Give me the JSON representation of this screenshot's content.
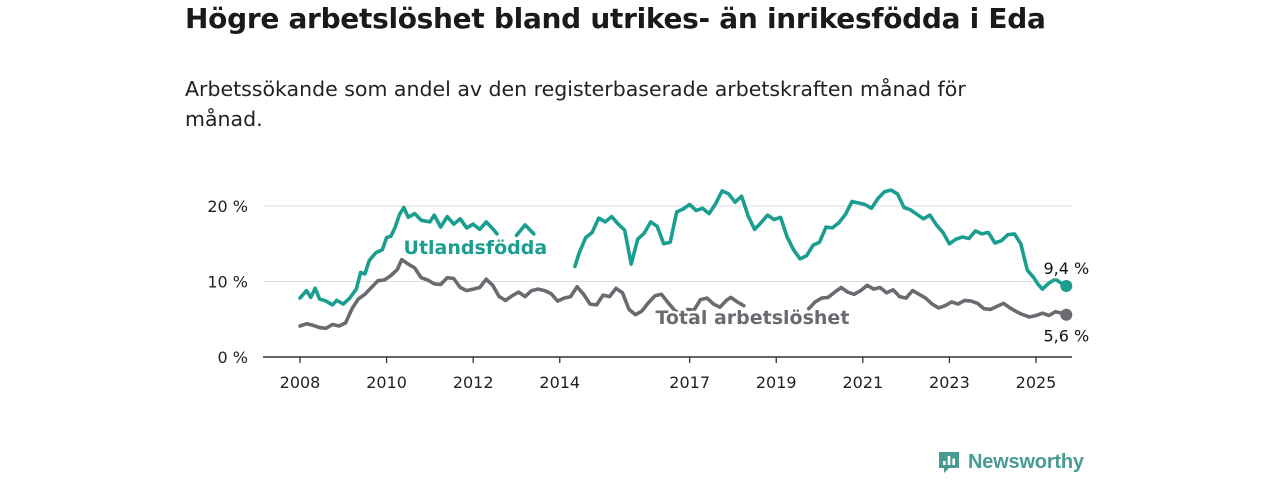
{
  "title": "Högre arbetslöshet bland utrikes- än inrikesfödda i Eda",
  "subtitle": "Arbetssökande som andel av den registerbaserade arbetskraften månad för månad.",
  "brand": {
    "name": "Newsworthy",
    "color": "#4a9a94"
  },
  "chart_data": {
    "type": "line",
    "ylim": [
      0,
      20
    ],
    "y_ticks": [
      0,
      10,
      20
    ],
    "y_tick_labels": [
      "0 %",
      "10 %",
      "20 %"
    ],
    "x_ticks": [
      2008,
      2010,
      2012,
      2014,
      2017,
      2019,
      2021,
      2023,
      2025
    ],
    "x_range": [
      2008.0,
      2025.3
    ],
    "grid": true,
    "series": [
      {
        "name": "Utlandsfödda",
        "color": "#1a9e8f",
        "end_label": "9,4 %",
        "points": [
          [
            2008.0,
            7.8
          ],
          [
            2008.15,
            8.8
          ],
          [
            2008.25,
            7.9
          ],
          [
            2008.35,
            9.1
          ],
          [
            2008.45,
            7.7
          ],
          [
            2008.6,
            7.4
          ],
          [
            2008.75,
            6.9
          ],
          [
            2008.85,
            7.5
          ],
          [
            2009.0,
            7.0
          ],
          [
            2009.15,
            7.8
          ],
          [
            2009.3,
            9.0
          ],
          [
            2009.4,
            11.2
          ],
          [
            2009.5,
            11.0
          ],
          [
            2009.6,
            12.8
          ],
          [
            2009.75,
            13.8
          ],
          [
            2009.9,
            14.2
          ],
          [
            2010.0,
            15.8
          ],
          [
            2010.1,
            16.0
          ],
          [
            2010.2,
            17.2
          ],
          [
            2010.3,
            18.9
          ],
          [
            2010.4,
            19.8
          ],
          [
            2010.5,
            18.5
          ],
          [
            2010.65,
            19.0
          ],
          [
            2010.8,
            18.1
          ],
          [
            2011.0,
            17.9
          ],
          [
            2011.1,
            18.8
          ],
          [
            2011.25,
            17.2
          ],
          [
            2011.4,
            18.6
          ],
          [
            2011.55,
            17.6
          ],
          [
            2011.7,
            18.3
          ],
          [
            2011.85,
            17.1
          ],
          [
            2012.0,
            17.6
          ],
          [
            2012.15,
            16.9
          ],
          [
            2012.3,
            17.9
          ],
          [
            2012.45,
            17.0
          ],
          [
            2012.55,
            16.3
          ],
          null,
          [
            2013.0,
            16.1
          ],
          [
            2013.2,
            17.5
          ],
          [
            2013.4,
            16.3
          ],
          null,
          [
            2014.35,
            12.0
          ],
          [
            2014.45,
            13.8
          ],
          [
            2014.6,
            15.8
          ],
          [
            2014.75,
            16.5
          ],
          [
            2014.9,
            18.4
          ],
          [
            2015.05,
            17.9
          ],
          [
            2015.2,
            18.6
          ],
          [
            2015.35,
            17.6
          ],
          [
            2015.5,
            16.8
          ],
          [
            2015.65,
            12.3
          ],
          [
            2015.8,
            15.6
          ],
          [
            2015.95,
            16.4
          ],
          [
            2016.1,
            17.9
          ],
          [
            2016.25,
            17.3
          ],
          [
            2016.4,
            15.0
          ],
          [
            2016.55,
            15.2
          ],
          [
            2016.7,
            19.2
          ],
          [
            2016.85,
            19.6
          ],
          [
            2017.0,
            20.2
          ],
          [
            2017.15,
            19.4
          ],
          [
            2017.3,
            19.7
          ],
          [
            2017.45,
            19.0
          ],
          [
            2017.6,
            20.3
          ],
          [
            2017.75,
            22.0
          ],
          [
            2017.9,
            21.6
          ],
          [
            2018.05,
            20.5
          ],
          [
            2018.2,
            21.3
          ],
          [
            2018.35,
            18.7
          ],
          [
            2018.5,
            16.9
          ],
          [
            2018.65,
            17.8
          ],
          [
            2018.8,
            18.8
          ],
          [
            2018.95,
            18.2
          ],
          [
            2019.1,
            18.5
          ],
          [
            2019.25,
            15.9
          ],
          [
            2019.4,
            14.2
          ],
          [
            2019.55,
            13.0
          ],
          [
            2019.7,
            13.4
          ],
          [
            2019.85,
            14.8
          ],
          [
            2020.0,
            15.2
          ],
          [
            2020.15,
            17.2
          ],
          [
            2020.3,
            17.1
          ],
          [
            2020.45,
            17.8
          ],
          [
            2020.6,
            18.9
          ],
          [
            2020.75,
            20.6
          ],
          [
            2020.9,
            20.4
          ],
          [
            2021.05,
            20.2
          ],
          [
            2021.2,
            19.7
          ],
          [
            2021.35,
            21.0
          ],
          [
            2021.5,
            21.9
          ],
          [
            2021.65,
            22.1
          ],
          [
            2021.8,
            21.6
          ],
          [
            2021.95,
            19.8
          ],
          [
            2022.1,
            19.5
          ],
          [
            2022.25,
            18.9
          ],
          [
            2022.4,
            18.3
          ],
          [
            2022.55,
            18.8
          ],
          [
            2022.7,
            17.5
          ],
          [
            2022.85,
            16.5
          ],
          [
            2023.0,
            15.0
          ],
          [
            2023.15,
            15.6
          ],
          [
            2023.3,
            15.9
          ],
          [
            2023.45,
            15.7
          ],
          [
            2023.6,
            16.7
          ],
          [
            2023.75,
            16.3
          ],
          [
            2023.9,
            16.5
          ],
          [
            2024.05,
            15.1
          ],
          [
            2024.2,
            15.4
          ],
          [
            2024.35,
            16.2
          ],
          [
            2024.5,
            16.3
          ],
          [
            2024.65,
            15.0
          ],
          [
            2024.8,
            11.5
          ],
          [
            2024.95,
            10.5
          ],
          [
            2025.05,
            9.6
          ],
          [
            2025.15,
            9.0
          ],
          [
            2025.3,
            9.8
          ],
          [
            2025.45,
            10.3
          ],
          [
            2025.55,
            9.9
          ],
          [
            2025.7,
            9.4
          ]
        ]
      },
      {
        "name": "Total arbetslöshet",
        "color": "#6b6a70",
        "end_label": "5,6 %",
        "points": [
          [
            2008.0,
            4.1
          ],
          [
            2008.15,
            4.4
          ],
          [
            2008.3,
            4.2
          ],
          [
            2008.45,
            3.9
          ],
          [
            2008.6,
            3.8
          ],
          [
            2008.75,
            4.3
          ],
          [
            2008.9,
            4.1
          ],
          [
            2009.05,
            4.5
          ],
          [
            2009.2,
            6.4
          ],
          [
            2009.35,
            7.7
          ],
          [
            2009.5,
            8.3
          ],
          [
            2009.65,
            9.2
          ],
          [
            2009.8,
            10.1
          ],
          [
            2009.95,
            10.2
          ],
          [
            2010.1,
            10.8
          ],
          [
            2010.25,
            11.6
          ],
          [
            2010.35,
            12.9
          ],
          [
            2010.5,
            12.3
          ],
          [
            2010.65,
            11.8
          ],
          [
            2010.8,
            10.5
          ],
          [
            2010.95,
            10.2
          ],
          [
            2011.1,
            9.7
          ],
          [
            2011.25,
            9.6
          ],
          [
            2011.4,
            10.5
          ],
          [
            2011.55,
            10.4
          ],
          [
            2011.7,
            9.2
          ],
          [
            2011.85,
            8.8
          ],
          [
            2012.0,
            9.0
          ],
          [
            2012.15,
            9.2
          ],
          [
            2012.3,
            10.3
          ],
          [
            2012.45,
            9.5
          ],
          [
            2012.6,
            8.0
          ],
          [
            2012.75,
            7.5
          ],
          [
            2012.9,
            8.1
          ],
          [
            2013.05,
            8.6
          ],
          [
            2013.2,
            8.0
          ],
          [
            2013.35,
            8.8
          ],
          [
            2013.5,
            9.0
          ],
          [
            2013.65,
            8.8
          ],
          [
            2013.8,
            8.4
          ],
          [
            2013.95,
            7.4
          ],
          [
            2014.1,
            7.8
          ],
          [
            2014.25,
            8.0
          ],
          [
            2014.4,
            9.3
          ],
          [
            2014.55,
            8.3
          ],
          [
            2014.7,
            7.0
          ],
          [
            2014.85,
            6.9
          ],
          [
            2015.0,
            8.2
          ],
          [
            2015.15,
            8.0
          ],
          [
            2015.3,
            9.1
          ],
          [
            2015.45,
            8.5
          ],
          [
            2015.6,
            6.3
          ],
          [
            2015.75,
            5.6
          ],
          [
            2015.9,
            6.1
          ],
          [
            2016.05,
            7.2
          ],
          [
            2016.2,
            8.1
          ],
          [
            2016.35,
            8.3
          ],
          [
            2016.5,
            7.2
          ],
          [
            2016.65,
            6.2
          ],
          [
            2016.8,
            5.6
          ],
          [
            2016.95,
            6.3
          ],
          [
            2017.1,
            6.2
          ],
          [
            2017.25,
            7.6
          ],
          [
            2017.4,
            7.8
          ],
          [
            2017.55,
            7.0
          ],
          [
            2017.7,
            6.6
          ],
          [
            2017.85,
            7.5
          ],
          [
            2017.95,
            7.9
          ],
          [
            2018.1,
            7.3
          ],
          [
            2018.25,
            6.8
          ],
          null,
          [
            2019.25,
            5.9
          ],
          [
            2019.4,
            5.8
          ],
          null,
          [
            2019.75,
            6.4
          ],
          [
            2019.9,
            7.3
          ],
          [
            2020.05,
            7.8
          ],
          [
            2020.2,
            7.9
          ],
          [
            2020.35,
            8.6
          ],
          [
            2020.5,
            9.2
          ],
          [
            2020.65,
            8.6
          ],
          [
            2020.8,
            8.3
          ],
          [
            2020.95,
            8.8
          ],
          [
            2021.1,
            9.5
          ],
          [
            2021.25,
            9.0
          ],
          [
            2021.4,
            9.2
          ],
          [
            2021.55,
            8.5
          ],
          [
            2021.7,
            8.9
          ],
          [
            2021.85,
            8.0
          ],
          [
            2022.0,
            7.8
          ],
          [
            2022.15,
            8.8
          ],
          [
            2022.3,
            8.3
          ],
          [
            2022.45,
            7.8
          ],
          [
            2022.6,
            7.0
          ],
          [
            2022.75,
            6.5
          ],
          [
            2022.9,
            6.8
          ],
          [
            2023.05,
            7.3
          ],
          [
            2023.2,
            7.0
          ],
          [
            2023.35,
            7.5
          ],
          [
            2023.5,
            7.4
          ],
          [
            2023.65,
            7.1
          ],
          [
            2023.8,
            6.4
          ],
          [
            2023.95,
            6.3
          ],
          [
            2024.1,
            6.7
          ],
          [
            2024.25,
            7.1
          ],
          [
            2024.4,
            6.5
          ],
          [
            2024.55,
            6.0
          ],
          [
            2024.7,
            5.6
          ],
          [
            2024.85,
            5.3
          ],
          [
            2025.0,
            5.5
          ],
          [
            2025.15,
            5.8
          ],
          [
            2025.3,
            5.5
          ],
          [
            2025.45,
            6.0
          ],
          [
            2025.6,
            5.8
          ],
          [
            2025.7,
            5.6
          ]
        ]
      }
    ]
  }
}
